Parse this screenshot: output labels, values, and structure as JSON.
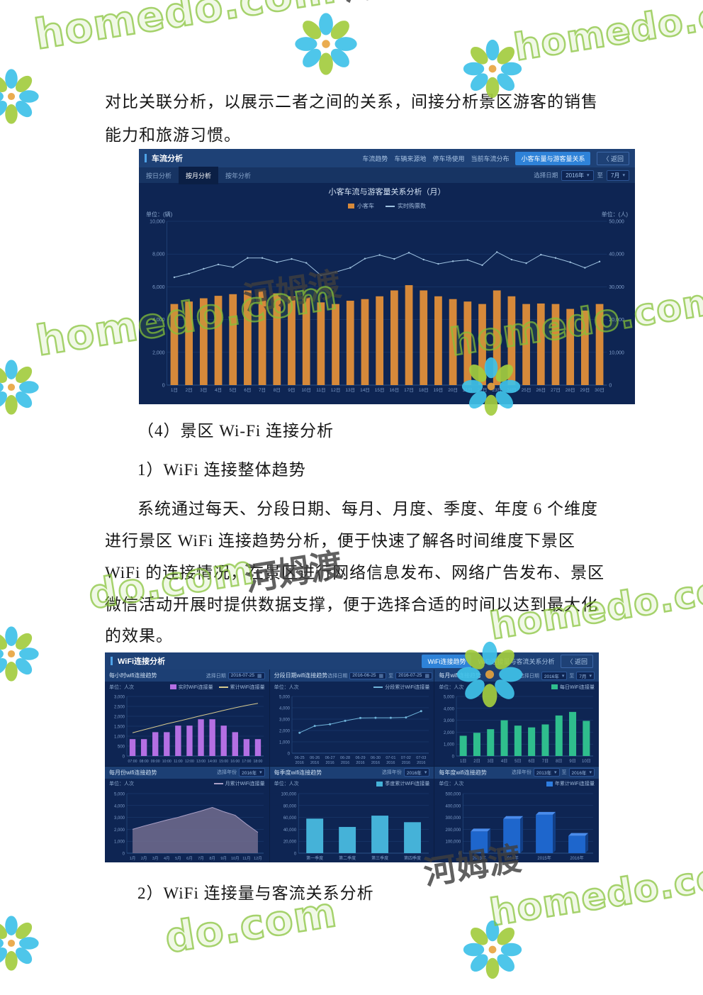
{
  "watermark": {
    "brand": "homedo.com",
    "brand_cjk": "河姆渡",
    "brand_short": "do.com",
    "green": "#8dc63f",
    "cyan": "#3fc1e8",
    "leaf_green": "#a3cc3f",
    "center_orange": "#e8a33d"
  },
  "doc": {
    "intro1": "对比关联分析，以展示二者之间的关系，间接分析景区游客的销售",
    "intro2": "能力和旅游习惯。",
    "h4": "（4）景区 Wi-Fi 连接分析",
    "s1": "1）WiFi 连接整体趋势",
    "b1": "系统通过每天、分段日期、每月、月度、季度、年度 6 个维度",
    "b2": "进行景区 WiFi 连接趋势分析，便于快速了解各时间维度下景区",
    "b3": "WiFi 的连接情况，在景区进行网络信息发布、网络广告发布、景区",
    "b4": "微信活动开展时提供数据支撑，便于选择合适的时间以达到最大化",
    "b5": "的效果。",
    "s2": "2）WiFi 连接量与客流关系分析"
  },
  "dashboard1": {
    "title": "车流分析",
    "nav": [
      {
        "label": "车流趋势"
      },
      {
        "label": "车辆来源地"
      },
      {
        "label": "停车场使用"
      },
      {
        "label": "当前车流分布"
      },
      {
        "label": "小客车量与游客量关系",
        "active": true
      },
      {
        "label": "〈 返回",
        "back": true
      }
    ],
    "tabs": [
      {
        "label": "按日分析"
      },
      {
        "label": "按月分析",
        "active": true
      },
      {
        "label": "按年分析"
      }
    ],
    "date_controls": [
      {
        "t": "label",
        "v": "选择日期"
      },
      {
        "t": "box",
        "v": "2016年",
        "icon": "dropdown"
      },
      {
        "t": "label",
        "v": "至"
      },
      {
        "t": "box",
        "v": "7月",
        "icon": "dropdown"
      }
    ]
  },
  "dashboard2": {
    "title": "WiFi连接分析",
    "nav": [
      {
        "label": "WiFi连接趋势",
        "active": true
      },
      {
        "label": "WiFi连接量与客流关系分析"
      },
      {
        "label": "〈 返回",
        "back": true
      }
    ],
    "panels": [
      {
        "controls": [
          {
            "t": "label",
            "v": "选择日期"
          },
          {
            "t": "box",
            "v": "2016-07-25",
            "icon": "calendar"
          }
        ]
      },
      {
        "controls": [
          {
            "t": "label",
            "v": "选择日期"
          },
          {
            "t": "box",
            "v": "2016-06-25",
            "icon": "calendar"
          },
          {
            "t": "label",
            "v": "至"
          },
          {
            "t": "box",
            "v": "2016-07-25",
            "icon": "calendar"
          }
        ]
      },
      {
        "controls": [
          {
            "t": "label",
            "v": "选择日期"
          },
          {
            "t": "box",
            "v": "2016年",
            "icon": "dropdown"
          },
          {
            "t": "label",
            "v": "至"
          },
          {
            "t": "box",
            "v": "7月",
            "icon": "dropdown"
          }
        ]
      },
      {
        "controls": [
          {
            "t": "label",
            "v": "选择年份"
          },
          {
            "t": "box",
            "v": "2016年",
            "icon": "dropdown"
          }
        ]
      },
      {
        "controls": [
          {
            "t": "label",
            "v": "选择年份"
          },
          {
            "t": "box",
            "v": "2016年",
            "icon": "dropdown"
          }
        ]
      },
      {
        "controls": [
          {
            "t": "label",
            "v": "选择年份"
          },
          {
            "t": "box",
            "v": "2013年",
            "icon": "dropdown"
          },
          {
            "t": "label",
            "v": "至"
          },
          {
            "t": "box",
            "v": "2016年",
            "icon": "dropdown"
          }
        ]
      }
    ]
  },
  "chart_data": [
    {
      "type": "bar+line",
      "title": "小客车流与游客量关系分析（月）",
      "unit_left": "单位：(辆)",
      "unit_right": "单位：(人)",
      "ymax": 10000,
      "ymax_right": 50000,
      "yticks": [
        "10,000",
        "8,000",
        "6,000",
        "4,000",
        "2,000",
        "0"
      ],
      "yticks_right": [
        "50,000",
        "40,000",
        "30,000",
        "20,000",
        "10,000",
        "0"
      ],
      "tick_fs": 7,
      "x_fs": 6.5,
      "legend": [
        {
          "label": "小客车",
          "color": "#d6893a",
          "shape": "bar"
        },
        {
          "label": "实时购票数",
          "color": "#9fc2e0",
          "shape": "line"
        }
      ],
      "categories": [
        "1日",
        "2日",
        "3日",
        "4日",
        "5日",
        "6日",
        "7日",
        "8日",
        "9日",
        "10日",
        "11日",
        "12日",
        "13日",
        "14日",
        "15日",
        "16日",
        "17日",
        "18日",
        "19日",
        "20日",
        "21日",
        "22日",
        "23日",
        "24日",
        "25日",
        "26日",
        "27日",
        "28日",
        "29日",
        "30日"
      ],
      "series": [
        {
          "name": "小客车",
          "type": "bar",
          "axis": "left",
          "color": "#d6893a",
          "values": [
            4950,
            5100,
            5300,
            5450,
            5550,
            5780,
            5780,
            5600,
            5420,
            5350,
            5050,
            4950,
            5150,
            5250,
            5420,
            5780,
            6100,
            5780,
            5420,
            5250,
            5100,
            4950,
            5780,
            5420,
            4950,
            4980,
            4950,
            4650,
            4550,
            4950
          ]
        },
        {
          "name": "实时购票数",
          "type": "line",
          "axis": "right",
          "color": "#9fc2e0",
          "dots": true,
          "dot_r": 1.2,
          "values": [
            32900,
            34000,
            35500,
            36800,
            36000,
            38800,
            38800,
            37500,
            38500,
            37300,
            33500,
            34500,
            35800,
            38600,
            39700,
            38500,
            40400,
            38300,
            37000,
            37800,
            38200,
            36600,
            40600,
            38300,
            37200,
            39800,
            38800,
            37500,
            35800,
            37700
          ]
        }
      ]
    },
    {
      "type": "bar+line",
      "title": "每小时wifi连接趋势",
      "unit": "单位：人次",
      "ymax": 3000,
      "yticks": [
        "3,000",
        "2,500",
        "2,000",
        "1,500",
        "1,000",
        "500",
        "0"
      ],
      "x_fs": 5.2,
      "legend": [
        {
          "label": "实时WiFi连接量",
          "color": "#b46fe3",
          "shape": "bar"
        },
        {
          "label": "累计WiFi连接量",
          "color": "#d6c98e",
          "shape": "line"
        }
      ],
      "categories": [
        "07:00",
        "08:00",
        "09:00",
        "10:00",
        "11:00",
        "12:00",
        "13:00",
        "14:00",
        "15:00",
        "16:00",
        "17:00",
        "18:00"
      ],
      "series": [
        {
          "name": "实时WiFi连接量",
          "type": "bar",
          "color": "#b46fe3",
          "values": [
            850,
            850,
            1200,
            1200,
            1530,
            1530,
            1850,
            1850,
            1530,
            1200,
            850,
            850
          ]
        },
        {
          "name": "累计WiFi连接量",
          "type": "line",
          "color": "#d6c98e",
          "values": [
            1170,
            1320,
            1470,
            1620,
            1750,
            1890,
            2030,
            2160,
            2300,
            2430,
            2550,
            2650
          ]
        }
      ]
    },
    {
      "type": "line",
      "title": "分段日期wifi连接趋势",
      "unit": "单位：人次",
      "ymax": 5000,
      "yticks": [
        "5,000",
        "4,000",
        "3,000",
        "2,000",
        "1,000",
        "0"
      ],
      "legend": [
        {
          "label": "分段累计WiFi连接量",
          "color": "#6fb3d9",
          "shape": "line"
        }
      ],
      "categories": [
        [
          "06-25",
          "2016"
        ],
        [
          "06-26",
          "2016"
        ],
        [
          "06-27",
          "2016"
        ],
        [
          "06-28",
          "2016"
        ],
        [
          "06-29",
          "2016"
        ],
        [
          "06-30",
          "2016"
        ],
        [
          "07-01",
          "2016"
        ],
        [
          "07-02",
          "2016"
        ],
        [
          "07-03",
          "2016"
        ]
      ],
      "series": [
        {
          "name": "分段累计WiFi连接量",
          "type": "line",
          "color": "#6fb3d9",
          "dots": true,
          "dot_r": 1.5,
          "values": [
            1800,
            2400,
            2550,
            2850,
            3100,
            3120,
            3120,
            3150,
            3700
          ]
        }
      ]
    },
    {
      "type": "bar",
      "title": "每月wifi连接趋势",
      "unit": "单位：人次",
      "ymax": 5000,
      "yticks": [
        "5,000",
        "4,000",
        "3,000",
        "2,000",
        "1,000",
        "0"
      ],
      "legend": [
        {
          "label": "每日WiFi连接量",
          "color": "#2fbe8d",
          "shape": "bar"
        }
      ],
      "categories": [
        "1日",
        "2日",
        "3日",
        "4日",
        "5日",
        "6日",
        "7日",
        "8日",
        "9日",
        "10日"
      ],
      "series": [
        {
          "name": "每日WiFi连接量",
          "type": "bar",
          "color": "#2fbe8d",
          "values": [
            1700,
            1950,
            2250,
            3000,
            2550,
            2400,
            2650,
            3400,
            3700,
            2950
          ]
        }
      ]
    },
    {
      "type": "area",
      "title": "每月份wifi连接趋势",
      "unit": "单位：人次",
      "ymax": 5000,
      "yticks": [
        "5,000",
        "4,000",
        "3,000",
        "2,000",
        "1,000",
        "0"
      ],
      "x_fs": 5.5,
      "legend": [
        {
          "label": "月累计WiFi连接量",
          "color": "#a99fc5",
          "shape": "line"
        }
      ],
      "categories": [
        "1月",
        "2月",
        "3月",
        "4月",
        "5月",
        "6月",
        "7月",
        "8月",
        "9月",
        "10月",
        "11月",
        "12月"
      ],
      "series": [
        {
          "name": "月累计WiFi连接量",
          "type": "line",
          "area": true,
          "fill": "#716c8e",
          "fill_opacity": 0.85,
          "color": "#a99fc5",
          "values": [
            2000,
            2280,
            2530,
            2780,
            3010,
            3280,
            3540,
            3840,
            3480,
            3180,
            2430,
            1750
          ]
        }
      ]
    },
    {
      "type": "bar",
      "title": "每季度wifi连接趋势",
      "unit": "单位：人次",
      "ymax": 100000,
      "yticks": [
        "100,000",
        "80,000",
        "60,000",
        "40,000",
        "20,000",
        "0"
      ],
      "legend": [
        {
          "label": "季度累计WiFi连接量",
          "color": "#45b2d8",
          "shape": "bar"
        }
      ],
      "categories": [
        "第一季度",
        "第二季度",
        "第三季度",
        "第四季度"
      ],
      "series": [
        {
          "name": "季度累计WiFi连接量",
          "type": "bar",
          "color": "#45b2d8",
          "values": [
            58000,
            44000,
            63000,
            52000
          ]
        }
      ]
    },
    {
      "type": "bar3d",
      "title": "每年度wifi连接趋势",
      "unit": "单位：人次",
      "ymax": 500000,
      "yticks": [
        "500,000",
        "400,000",
        "300,000",
        "200,000",
        "100,000",
        "0"
      ],
      "legend": [
        {
          "label": "年累计WiFi连接量",
          "color": "#2e7de0",
          "shape": "bar"
        }
      ],
      "categories": [
        "2013年",
        "2014年",
        "2015年",
        "2016年"
      ],
      "series": [
        {
          "name": "年累计WiFi连接量",
          "type": "bar",
          "threed": true,
          "color": "#1e66cc",
          "color_top": "#4a8cec",
          "color_side": "#123f86",
          "values": [
            182000,
            287000,
            322000,
            145000
          ]
        }
      ]
    }
  ]
}
